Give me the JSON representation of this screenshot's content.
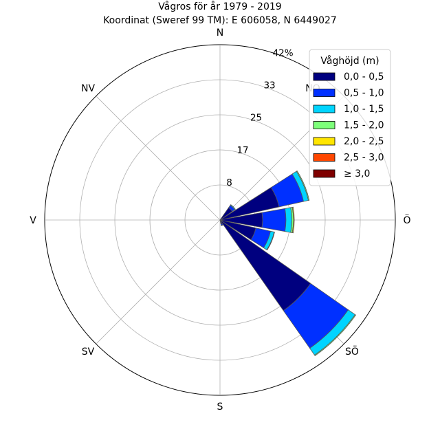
{
  "chart_data": {
    "type": "windrose",
    "title": "Vågros för år 1979 - 2019",
    "subtitle": "Koordinat (Sweref 99 TM): E 606058, N 6449027",
    "directions": [
      "N",
      "NO",
      "Ö",
      "SÖ",
      "S",
      "SV",
      "V",
      "NV"
    ],
    "radial_ticks": [
      "8",
      "17",
      "25",
      "33",
      "42%"
    ],
    "radial_tick_values": [
      8.4,
      16.8,
      25.2,
      33.6,
      42
    ],
    "rmax": 42,
    "legend_title": "Våghöjd (m)",
    "legend_placement": "top-right",
    "bins": [
      {
        "label": "0,0 - 0,5",
        "color": "#00007f"
      },
      {
        "label": "0,5 - 1,0",
        "color": "#0030ff"
      },
      {
        "label": "1,0 - 1,5",
        "color": "#00d4ff"
      },
      {
        "label": "1,5 - 2,0",
        "color": "#7dff7a"
      },
      {
        "label": "2,0 - 2,5",
        "color": "#ffe500"
      },
      {
        "label": "2,5 - 3,0",
        "color": "#ff4600"
      },
      {
        "label": "≥ 3,0",
        "color": "#7f0000"
      }
    ],
    "sectors": [
      {
        "angle": 45,
        "values": [
          3.6,
          0.7,
          0.2,
          0,
          0,
          0,
          0
        ]
      },
      {
        "angle": 67.5,
        "values": [
          14.5,
          6.0,
          1.2,
          0.2,
          0,
          0,
          0
        ]
      },
      {
        "angle": 90,
        "values": [
          10.2,
          5.6,
          1.4,
          0.4,
          0.2,
          0,
          0
        ]
      },
      {
        "angle": 112.5,
        "values": [
          8.8,
          3.6,
          0.9,
          0.1,
          0,
          0,
          0
        ]
      },
      {
        "angle": 135,
        "values": [
          26.5,
          11.0,
          2.0,
          0.2,
          0,
          0,
          0
        ]
      },
      {
        "angle": 157.5,
        "values": [
          1.0,
          0.3,
          0.1,
          0,
          0,
          0,
          0
        ]
      }
    ]
  }
}
